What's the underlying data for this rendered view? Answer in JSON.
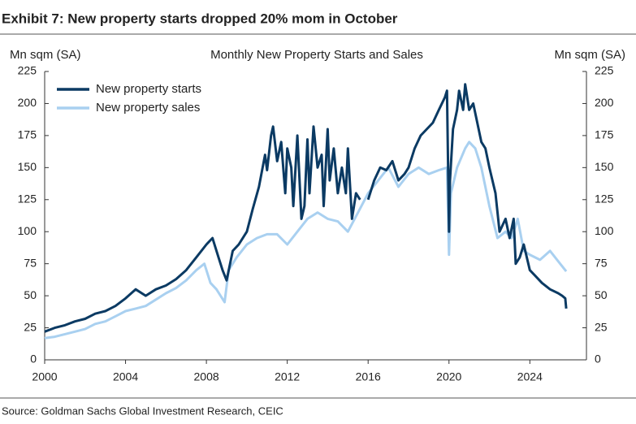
{
  "chart_data": {
    "type": "line",
    "title": "Exhibit 7: New property starts dropped 20% mom in October",
    "subtitle": "Monthly New Property Starts and Sales",
    "y_label": "Mn sqm (SA)",
    "y2_label": "Mn sqm (SA)",
    "source": "Source: Goldman Sachs Global Investment Research, CEIC",
    "xlim": [
      2000,
      2026.8
    ],
    "xticks": [
      2000,
      2004,
      2008,
      2012,
      2016,
      2020,
      2024
    ],
    "ylim": [
      0,
      225
    ],
    "yticks": [
      0,
      25,
      50,
      75,
      100,
      125,
      150,
      175,
      200,
      225
    ],
    "y2lim": [
      0,
      225
    ],
    "y2ticks": [
      0,
      25,
      50,
      75,
      100,
      125,
      150,
      175,
      200,
      225
    ],
    "legend": "top-left",
    "series": [
      {
        "name": "New property starts",
        "color": "#0b3a63",
        "x": [
          2000,
          2000.5,
          2001,
          2001.5,
          2002,
          2002.5,
          2003,
          2003.5,
          2004,
          2004.5,
          2005,
          2005.5,
          2006,
          2006.5,
          2007,
          2007.5,
          2008,
          2008.3,
          2008.6,
          2008.8,
          2009,
          2009.3,
          2009.6,
          2010,
          2010.3,
          2010.6,
          2010.9,
          2011,
          2011.2,
          2011.3,
          2011.5,
          2011.7,
          2011.9,
          2012,
          2012.2,
          2012.3,
          2012.5,
          2012.7,
          2012.85,
          2013,
          2013.1,
          2013.3,
          2013.5,
          2013.7,
          2013.8,
          2014,
          2014.1,
          2014.3,
          2014.5,
          2014.7,
          2014.9,
          2015,
          2015.2,
          2015.4,
          2015.6,
          2015.8,
          2016,
          2016.3,
          2016.6,
          2016.9,
          2017.2,
          2017.5,
          2017.8,
          2018,
          2018.3,
          2018.6,
          2018.9,
          2019.2,
          2019.5,
          2019.8,
          2019.9,
          2020,
          2020.05,
          2020.2,
          2020.4,
          2020.5,
          2020.7,
          2020.8,
          2021,
          2021.2,
          2021.4,
          2021.6,
          2021.8,
          2022,
          2022.3,
          2022.5,
          2022.8,
          2023,
          2023.2,
          2023.3,
          2023.5,
          2023.7,
          2024,
          2024.3,
          2024.6,
          2025,
          2025.4,
          2025.6,
          2025.75,
          2025.8
        ],
        "values": [
          22,
          25,
          27,
          30,
          32,
          36,
          38,
          42,
          48,
          55,
          50,
          55,
          58,
          63,
          70,
          80,
          90,
          95,
          80,
          70,
          62,
          85,
          90,
          100,
          118,
          135,
          160,
          148,
          175,
          182,
          155,
          170,
          130,
          165,
          150,
          120,
          175,
          110,
          120,
          172,
          130,
          182,
          150,
          160,
          120,
          180,
          140,
          165,
          130,
          150,
          130,
          165,
          110,
          130,
          125,
          null,
          125,
          140,
          150,
          148,
          155,
          140,
          145,
          150,
          165,
          175,
          180,
          185,
          195,
          205,
          210,
          100,
          140,
          180,
          195,
          210,
          195,
          215,
          195,
          200,
          185,
          170,
          165,
          150,
          130,
          100,
          110,
          95,
          110,
          75,
          80,
          90,
          70,
          65,
          60,
          55,
          52,
          50,
          48,
          40
        ]
      },
      {
        "name": "New property sales",
        "color": "#a9d0f0",
        "x": [
          2000,
          2000.5,
          2001,
          2001.5,
          2002,
          2002.5,
          2003,
          2003.5,
          2004,
          2004.5,
          2005,
          2005.5,
          2006,
          2006.5,
          2007,
          2007.5,
          2007.9,
          2008.2,
          2008.5,
          2008.9,
          2009.1,
          2009.5,
          2010,
          2010.5,
          2011,
          2011.5,
          2012,
          2012.5,
          2013,
          2013.5,
          2014,
          2014.5,
          2015,
          2015.5,
          2016,
          2016.5,
          2017,
          2017.5,
          2018,
          2018.5,
          2019,
          2019.5,
          2019.9,
          2020,
          2020.1,
          2020.4,
          2020.8,
          2021,
          2021.3,
          2021.6,
          2022,
          2022.4,
          2022.8,
          2023.1,
          2023.4,
          2023.7,
          2024,
          2024.5,
          2025,
          2025.5,
          2025.8
        ],
        "values": [
          17,
          18,
          20,
          22,
          24,
          28,
          30,
          34,
          38,
          40,
          42,
          47,
          52,
          56,
          62,
          70,
          75,
          60,
          55,
          45,
          70,
          80,
          90,
          95,
          98,
          98,
          90,
          100,
          110,
          115,
          110,
          108,
          100,
          115,
          130,
          140,
          150,
          135,
          145,
          150,
          145,
          148,
          150,
          82,
          130,
          150,
          165,
          170,
          165,
          150,
          120,
          95,
          100,
          95,
          110,
          85,
          82,
          78,
          85,
          75,
          69
        ]
      }
    ]
  }
}
